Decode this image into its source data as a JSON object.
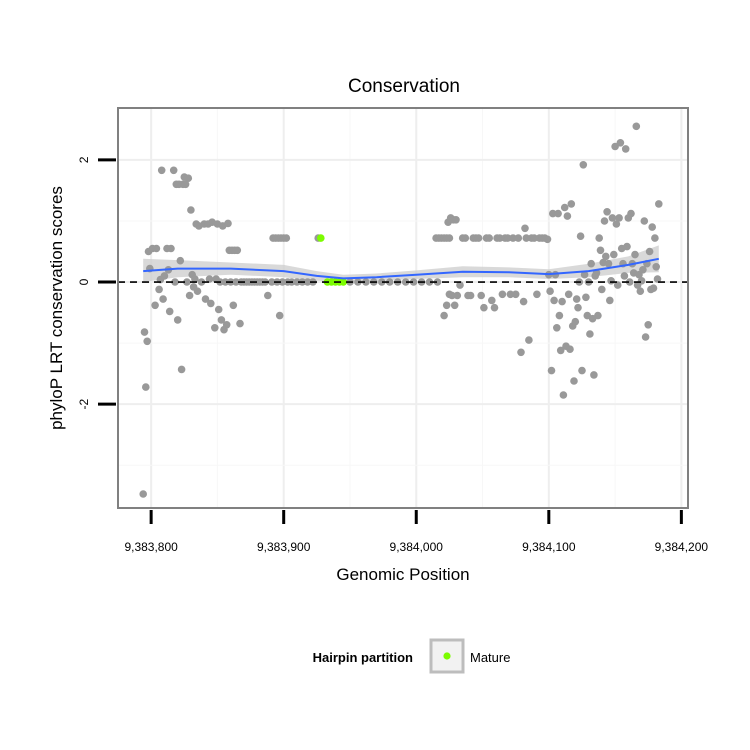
{
  "chart_data": {
    "type": "scatter",
    "title": "Conservation",
    "xlabel": "Genomic Position",
    "ylabel": "phyloP LRT conservation scores",
    "xlim": [
      9383775,
      9384205
    ],
    "ylim": [
      -3.7,
      2.85
    ],
    "x_ticks": [
      9383800,
      9383900,
      9384000,
      9384100,
      9384200
    ],
    "x_tick_labels": [
      "9,383,800",
      "9,383,900",
      "9,384,000",
      "9,384,100",
      "9,384,200"
    ],
    "y_ticks": [
      -2,
      0,
      2
    ],
    "y_tick_labels": [
      "-2",
      "0",
      "2"
    ],
    "grid": true,
    "reference_line": 0,
    "legend": {
      "title": "Hairpin partition",
      "position": "bottom",
      "entries": [
        {
          "label": "Mature",
          "color": "#7CFC00"
        }
      ]
    },
    "colors": {
      "points": "#999999",
      "mature": "#7CFC00",
      "smooth": "#3366FF",
      "band": "#cccccc"
    },
    "points": [
      [
        9383794,
        -3.47
      ],
      [
        9383796,
        -1.72
      ],
      [
        9383795,
        -0.82
      ],
      [
        9383797,
        -0.97
      ],
      [
        9383798,
        0.5
      ],
      [
        9383799,
        0.22
      ],
      [
        9383801,
        0.55
      ],
      [
        9383803,
        -0.38
      ],
      [
        9383804,
        0.55
      ],
      [
        9383806,
        -0.12
      ],
      [
        9383807,
        0.04
      ],
      [
        9383808,
        1.83
      ],
      [
        9383809,
        -0.28
      ],
      [
        9383810,
        0.1
      ],
      [
        9383812,
        0.55
      ],
      [
        9383813,
        0.2
      ],
      [
        9383814,
        -0.48
      ],
      [
        9383815,
        0.55
      ],
      [
        9383817,
        1.83
      ],
      [
        9383818,
        0.0
      ],
      [
        9383819,
        1.6
      ],
      [
        9383820,
        -0.62
      ],
      [
        9383821,
        1.6
      ],
      [
        9383822,
        0.35
      ],
      [
        9383823,
        -1.43
      ],
      [
        9383824,
        1.6
      ],
      [
        9383825,
        1.72
      ],
      [
        9383826,
        1.6
      ],
      [
        9383827,
        0.0
      ],
      [
        9383828,
        1.7
      ],
      [
        9383829,
        -0.22
      ],
      [
        9383830,
        1.18
      ],
      [
        9383831,
        0.12
      ],
      [
        9383832,
        -0.08
      ],
      [
        9383833,
        0.05
      ],
      [
        9383834,
        0.95
      ],
      [
        9383835,
        -0.15
      ],
      [
        9383836,
        0.92
      ],
      [
        9383838,
        0.0
      ],
      [
        9383840,
        0.95
      ],
      [
        9383841,
        -0.28
      ],
      [
        9383843,
        0.95
      ],
      [
        9383844,
        0.05
      ],
      [
        9383845,
        -0.35
      ],
      [
        9383846,
        0.98
      ],
      [
        9383848,
        -0.75
      ],
      [
        9383849,
        0.05
      ],
      [
        9383850,
        0.95
      ],
      [
        9383851,
        -0.45
      ],
      [
        9383852,
        0.0
      ],
      [
        9383853,
        -0.62
      ],
      [
        9383854,
        0.92
      ],
      [
        9383855,
        -0.78
      ],
      [
        9383856,
        0.0
      ],
      [
        9383857,
        -0.7
      ],
      [
        9383858,
        0.96
      ],
      [
        9383859,
        0.52
      ],
      [
        9383860,
        0.0
      ],
      [
        9383861,
        0.52
      ],
      [
        9383862,
        -0.38
      ],
      [
        9383863,
        0.52
      ],
      [
        9383864,
        0.0
      ],
      [
        9383865,
        0.52
      ],
      [
        9383867,
        -0.68
      ],
      [
        9383868,
        0.0
      ],
      [
        9383870,
        0.0
      ],
      [
        9383872,
        0.0
      ],
      [
        9383874,
        0.0
      ],
      [
        9383876,
        0.0
      ],
      [
        9383878,
        0.0
      ],
      [
        9383880,
        0.0
      ],
      [
        9383882,
        0.0
      ],
      [
        9383884,
        0.0
      ],
      [
        9383886,
        0.0
      ],
      [
        9383888,
        -0.22
      ],
      [
        9383892,
        0.72
      ],
      [
        9383894,
        0.72
      ],
      [
        9383896,
        0.72
      ],
      [
        9383898,
        0.72
      ],
      [
        9383900,
        0.72
      ],
      [
        9383902,
        0.72
      ],
      [
        9383897,
        -0.55
      ],
      [
        9383891,
        0.0
      ],
      [
        9383895,
        0.0
      ],
      [
        9383899,
        0.0
      ],
      [
        9383903,
        0.0
      ],
      [
        9383906,
        0.0
      ],
      [
        9383910,
        0.0
      ],
      [
        9383914,
        0.0
      ],
      [
        9383918,
        0.0
      ],
      [
        9383922,
        0.0
      ],
      [
        9383926,
        0.72
      ],
      [
        9383950,
        0.0
      ],
      [
        9383956,
        0.0
      ],
      [
        9383962,
        0.0
      ],
      [
        9383968,
        0.0
      ],
      [
        9383974,
        0.0
      ],
      [
        9383980,
        0.0
      ],
      [
        9383986,
        0.0
      ],
      [
        9383992,
        0.0
      ],
      [
        9383998,
        0.0
      ],
      [
        9384004,
        0.0
      ],
      [
        9384010,
        0.0
      ],
      [
        9384016,
        0.0
      ],
      [
        9384015,
        0.72
      ],
      [
        9384017,
        0.72
      ],
      [
        9384019,
        0.72
      ],
      [
        9384021,
        0.72
      ],
      [
        9384023,
        0.72
      ],
      [
        9384025,
        0.72
      ],
      [
        9384021,
        -0.55
      ],
      [
        9384023,
        -0.38
      ],
      [
        9384025,
        -0.2
      ],
      [
        9384024,
        0.98
      ],
      [
        9384026,
        1.05
      ],
      [
        9384028,
        1.02
      ],
      [
        9384030,
        1.02
      ],
      [
        9384027,
        -0.22
      ],
      [
        9384029,
        -0.38
      ],
      [
        9384031,
        -0.22
      ],
      [
        9384033,
        -0.05
      ],
      [
        9384035,
        0.72
      ],
      [
        9384037,
        0.72
      ],
      [
        9384039,
        -0.22
      ],
      [
        9384041,
        -0.22
      ],
      [
        9384043,
        0.72
      ],
      [
        9384045,
        0.72
      ],
      [
        9384047,
        0.72
      ],
      [
        9384049,
        -0.22
      ],
      [
        9384051,
        -0.42
      ],
      [
        9384053,
        0.72
      ],
      [
        9384055,
        0.72
      ],
      [
        9384057,
        -0.3
      ],
      [
        9384059,
        -0.42
      ],
      [
        9384061,
        0.72
      ],
      [
        9384063,
        0.72
      ],
      [
        9384065,
        -0.2
      ],
      [
        9384067,
        0.72
      ],
      [
        9384069,
        0.72
      ],
      [
        9384071,
        -0.2
      ],
      [
        9384073,
        0.72
      ],
      [
        9384075,
        -0.2
      ],
      [
        9384077,
        0.72
      ],
      [
        9384079,
        -1.15
      ],
      [
        9384081,
        -0.32
      ],
      [
        9384082,
        0.88
      ],
      [
        9384083,
        0.72
      ],
      [
        9384085,
        -0.95
      ],
      [
        9384087,
        0.72
      ],
      [
        9384089,
        0.72
      ],
      [
        9384091,
        -0.2
      ],
      [
        9384093,
        0.72
      ],
      [
        9384095,
        0.72
      ],
      [
        9384097,
        0.72
      ],
      [
        9384099,
        0.7
      ],
      [
        9384100,
        0.12
      ],
      [
        9384101,
        -0.15
      ],
      [
        9384102,
        -1.45
      ],
      [
        9384103,
        1.12
      ],
      [
        9384104,
        -0.3
      ],
      [
        9384105,
        0.12
      ],
      [
        9384106,
        -0.75
      ],
      [
        9384107,
        1.12
      ],
      [
        9384108,
        -0.55
      ],
      [
        9384109,
        -1.12
      ],
      [
        9384110,
        -0.32
      ],
      [
        9384111,
        -1.85
      ],
      [
        9384112,
        1.22
      ],
      [
        9384113,
        -1.05
      ],
      [
        9384114,
        1.08
      ],
      [
        9384115,
        -0.2
      ],
      [
        9384116,
        -1.1
      ],
      [
        9384117,
        1.28
      ],
      [
        9384118,
        -0.72
      ],
      [
        9384119,
        -1.62
      ],
      [
        9384120,
        -0.65
      ],
      [
        9384121,
        -0.28
      ],
      [
        9384122,
        -0.42
      ],
      [
        9384123,
        0.0
      ],
      [
        9384124,
        0.75
      ],
      [
        9384125,
        -1.45
      ],
      [
        9384126,
        1.92
      ],
      [
        9384127,
        0.12
      ],
      [
        9384128,
        -0.25
      ],
      [
        9384129,
        -0.55
      ],
      [
        9384130,
        0.0
      ],
      [
        9384131,
        -0.85
      ],
      [
        9384132,
        0.3
      ],
      [
        9384133,
        -0.6
      ],
      [
        9384134,
        -1.52
      ],
      [
        9384135,
        0.1
      ],
      [
        9384136,
        0.15
      ],
      [
        9384137,
        -0.55
      ],
      [
        9384138,
        0.72
      ],
      [
        9384139,
        0.52
      ],
      [
        9384140,
        -0.12
      ],
      [
        9384141,
        0.32
      ],
      [
        9384142,
        1.0
      ],
      [
        9384143,
        0.42
      ],
      [
        9384144,
        1.15
      ],
      [
        9384145,
        0.3
      ],
      [
        9384146,
        -0.3
      ],
      [
        9384147,
        0.02
      ],
      [
        9384148,
        1.05
      ],
      [
        9384149,
        0.45
      ],
      [
        9384150,
        2.22
      ],
      [
        9384151,
        0.95
      ],
      [
        9384152,
        -0.05
      ],
      [
        9384153,
        1.05
      ],
      [
        9384154,
        2.28
      ],
      [
        9384155,
        0.55
      ],
      [
        9384156,
        0.3
      ],
      [
        9384157,
        0.1
      ],
      [
        9384158,
        2.18
      ],
      [
        9384159,
        0.58
      ],
      [
        9384160,
        1.05
      ],
      [
        9384161,
        0.0
      ],
      [
        9384162,
        1.12
      ],
      [
        9384163,
        0.3
      ],
      [
        9384164,
        0.15
      ],
      [
        9384165,
        0.45
      ],
      [
        9384166,
        2.55
      ],
      [
        9384167,
        -0.05
      ],
      [
        9384168,
        0.12
      ],
      [
        9384169,
        -0.15
      ],
      [
        9384170,
        0.02
      ],
      [
        9384171,
        0.2
      ],
      [
        9384172,
        1.0
      ],
      [
        9384173,
        -0.9
      ],
      [
        9384174,
        0.3
      ],
      [
        9384175,
        -0.7
      ],
      [
        9384176,
        0.5
      ],
      [
        9384177,
        -0.12
      ],
      [
        9384178,
        0.9
      ],
      [
        9384179,
        -0.1
      ],
      [
        9384180,
        0.72
      ],
      [
        9384181,
        0.25
      ],
      [
        9384182,
        0.05
      ],
      [
        9384183,
        1.28
      ]
    ],
    "mature_points": [
      [
        9383928,
        0.72
      ],
      [
        9383933,
        0.0
      ],
      [
        9383936,
        0.0
      ],
      [
        9383939,
        0.0
      ],
      [
        9383942,
        0.0
      ],
      [
        9383945,
        0.0
      ]
    ],
    "smooth": {
      "x": [
        9383794,
        9383820,
        9383860,
        9383900,
        9383925,
        9383945,
        9383970,
        9384000,
        9384035,
        9384070,
        9384100,
        9384130,
        9384160,
        9384183
      ],
      "y": [
        0.18,
        0.22,
        0.22,
        0.18,
        0.1,
        0.06,
        0.08,
        0.12,
        0.17,
        0.16,
        0.13,
        0.18,
        0.28,
        0.38
      ],
      "ci_lower": [
        0.0,
        0.08,
        0.12,
        0.08,
        0.02,
        0.0,
        0.02,
        0.05,
        0.08,
        0.08,
        0.05,
        0.08,
        0.15,
        0.16
      ],
      "ci_upper": [
        0.38,
        0.36,
        0.32,
        0.28,
        0.18,
        0.12,
        0.14,
        0.19,
        0.26,
        0.24,
        0.21,
        0.3,
        0.42,
        0.6
      ]
    }
  }
}
